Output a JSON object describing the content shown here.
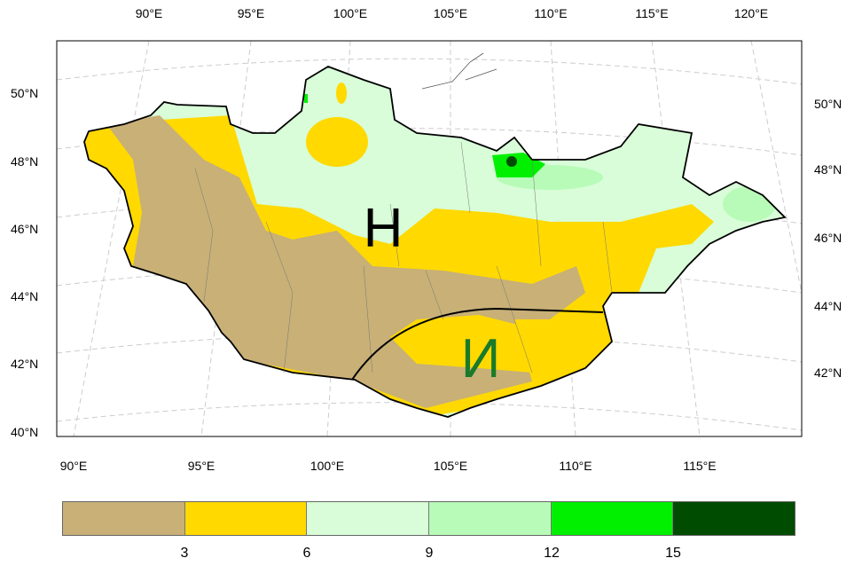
{
  "map": {
    "lon_labels_top": [
      "90°E",
      "95°E",
      "100°E",
      "105°E",
      "110°E",
      "115°E",
      "120°E"
    ],
    "lon_labels_bottom": [
      "90°E",
      "95°E",
      "100°E",
      "105°E",
      "110°E",
      "115°E"
    ],
    "lat_labels_left": [
      "50°N",
      "48°N",
      "46°N",
      "44°N",
      "42°N",
      "40°N"
    ],
    "lat_labels_right": [
      "50°N",
      "48°N",
      "46°N",
      "44°N",
      "42°N"
    ],
    "region_label_north": "Н",
    "region_label_south": "И",
    "north_label_color": "#000000",
    "south_label_color": "#1a7a2a"
  },
  "colorbar": {
    "colors": [
      "#c8b077",
      "#ffd900",
      "#d8fdd8",
      "#b8fbb8",
      "#00f000",
      "#004c00"
    ],
    "labels": [
      "3",
      "6",
      "9",
      "12",
      "15"
    ]
  }
}
